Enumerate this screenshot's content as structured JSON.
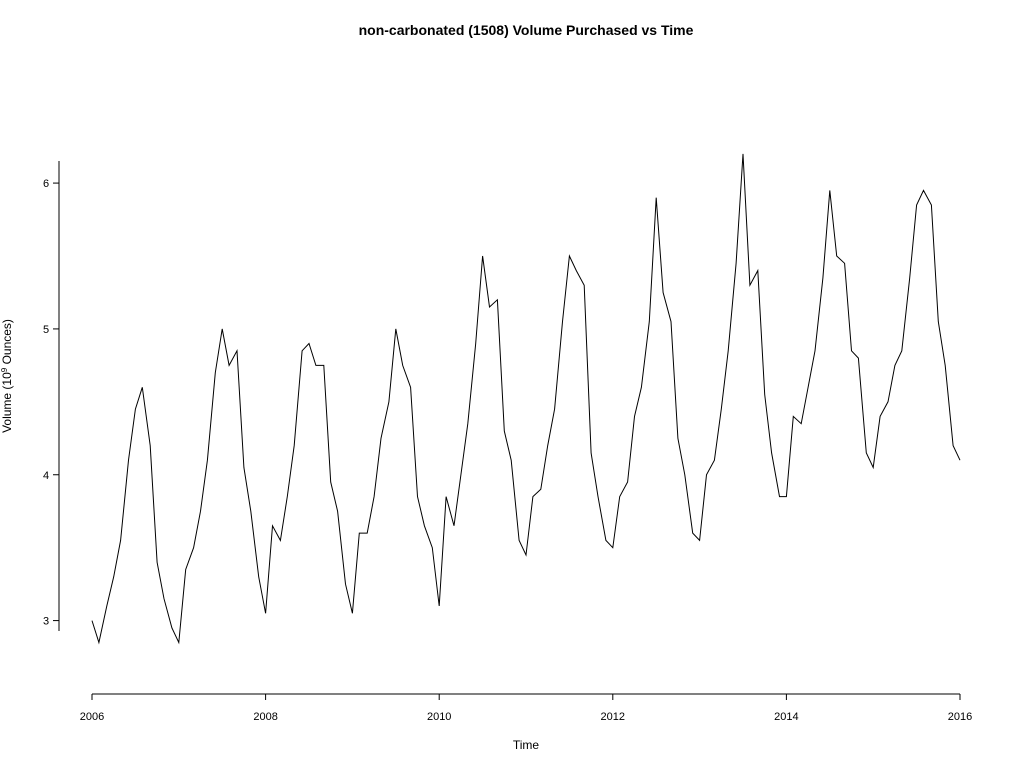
{
  "chart_data": {
    "type": "line",
    "title": "non-carbonated (1508) Volume Purchased vs Time",
    "xlabel": "Time",
    "ylabel_main": "Volume (10",
    "ylabel_sup": "9",
    "ylabel_tail": " Ounces)",
    "xlim": [
      2006,
      2016
    ],
    "ylim": [
      2.62,
      6.7
    ],
    "x_ticks": [
      2006,
      2008,
      2010,
      2012,
      2014,
      2016
    ],
    "x_tick_labels": [
      "2006",
      "2008",
      "2010",
      "2012",
      "2014",
      "2016"
    ],
    "y_ticks": [
      3,
      4,
      5,
      6
    ],
    "y_tick_labels": [
      "3",
      "4",
      "5",
      "6"
    ],
    "grid": false,
    "line_color": "#000000",
    "series": [
      {
        "x": [
          2006.0,
          2006.08,
          2006.17,
          2006.25,
          2006.33,
          2006.42,
          2006.5,
          2006.58,
          2006.67,
          2006.75,
          2006.83,
          2006.92,
          2007.0,
          2007.08,
          2007.17,
          2007.25,
          2007.33,
          2007.42,
          2007.5,
          2007.58,
          2007.67,
          2007.75,
          2007.83,
          2007.92,
          2008.0,
          2008.08,
          2008.17,
          2008.25,
          2008.33,
          2008.42,
          2008.5,
          2008.58,
          2008.67,
          2008.75,
          2008.83,
          2008.92,
          2009.0,
          2009.08,
          2009.17,
          2009.25,
          2009.33,
          2009.42,
          2009.5,
          2009.58,
          2009.67,
          2009.75,
          2009.83,
          2009.92,
          2010.0,
          2010.08,
          2010.17,
          2010.25,
          2010.33,
          2010.42,
          2010.5,
          2010.58,
          2010.67,
          2010.75,
          2010.83,
          2010.92,
          2011.0,
          2011.08,
          2011.17,
          2011.25,
          2011.33,
          2011.42,
          2011.5,
          2011.58,
          2011.67,
          2011.75,
          2011.83,
          2011.92,
          2012.0,
          2012.08,
          2012.17,
          2012.25,
          2012.33,
          2012.42,
          2012.5,
          2012.58,
          2012.67,
          2012.75,
          2012.83,
          2012.92,
          2013.0,
          2013.08,
          2013.17,
          2013.25,
          2013.33,
          2013.42,
          2013.5,
          2013.58,
          2013.67,
          2013.75,
          2013.83,
          2013.92,
          2014.0,
          2014.08,
          2014.17,
          2014.25,
          2014.33,
          2014.42,
          2014.5,
          2014.58,
          2014.67,
          2014.75,
          2014.83,
          2014.92,
          2015.0,
          2015.08,
          2015.17,
          2015.25,
          2015.33,
          2015.42,
          2015.5,
          2015.58,
          2015.67,
          2015.75,
          2015.83,
          2015.92,
          2016.0
        ],
        "values": [
          3.0,
          2.85,
          3.1,
          3.3,
          3.55,
          4.1,
          4.45,
          4.6,
          4.2,
          3.4,
          3.15,
          2.95,
          2.85,
          3.35,
          3.5,
          3.75,
          4.1,
          4.7,
          5.0,
          4.75,
          4.85,
          4.05,
          3.75,
          3.3,
          3.05,
          3.65,
          3.55,
          3.85,
          4.2,
          4.85,
          4.9,
          4.75,
          4.75,
          3.95,
          3.75,
          3.25,
          3.05,
          3.6,
          3.6,
          3.85,
          4.25,
          4.5,
          5.0,
          4.75,
          4.6,
          3.85,
          3.65,
          3.5,
          3.1,
          3.85,
          3.65,
          4.0,
          4.35,
          4.9,
          5.5,
          5.15,
          5.2,
          4.3,
          4.1,
          3.55,
          3.45,
          3.85,
          3.9,
          4.2,
          4.45,
          5.05,
          5.5,
          5.4,
          5.3,
          4.15,
          3.85,
          3.55,
          3.5,
          3.85,
          3.95,
          4.4,
          4.6,
          5.05,
          5.9,
          5.25,
          5.05,
          4.25,
          4.0,
          3.6,
          3.55,
          4.0,
          4.1,
          4.45,
          4.85,
          5.45,
          6.2,
          5.3,
          5.4,
          4.55,
          4.15,
          3.85,
          3.85,
          4.4,
          4.35,
          4.6,
          4.85,
          5.35,
          5.95,
          5.5,
          5.45,
          4.85,
          4.8,
          4.15,
          4.05,
          4.4,
          4.5,
          4.75,
          4.85,
          5.35,
          5.85,
          5.95,
          5.85,
          5.05,
          4.75,
          4.2,
          4.1
        ]
      }
    ]
  }
}
